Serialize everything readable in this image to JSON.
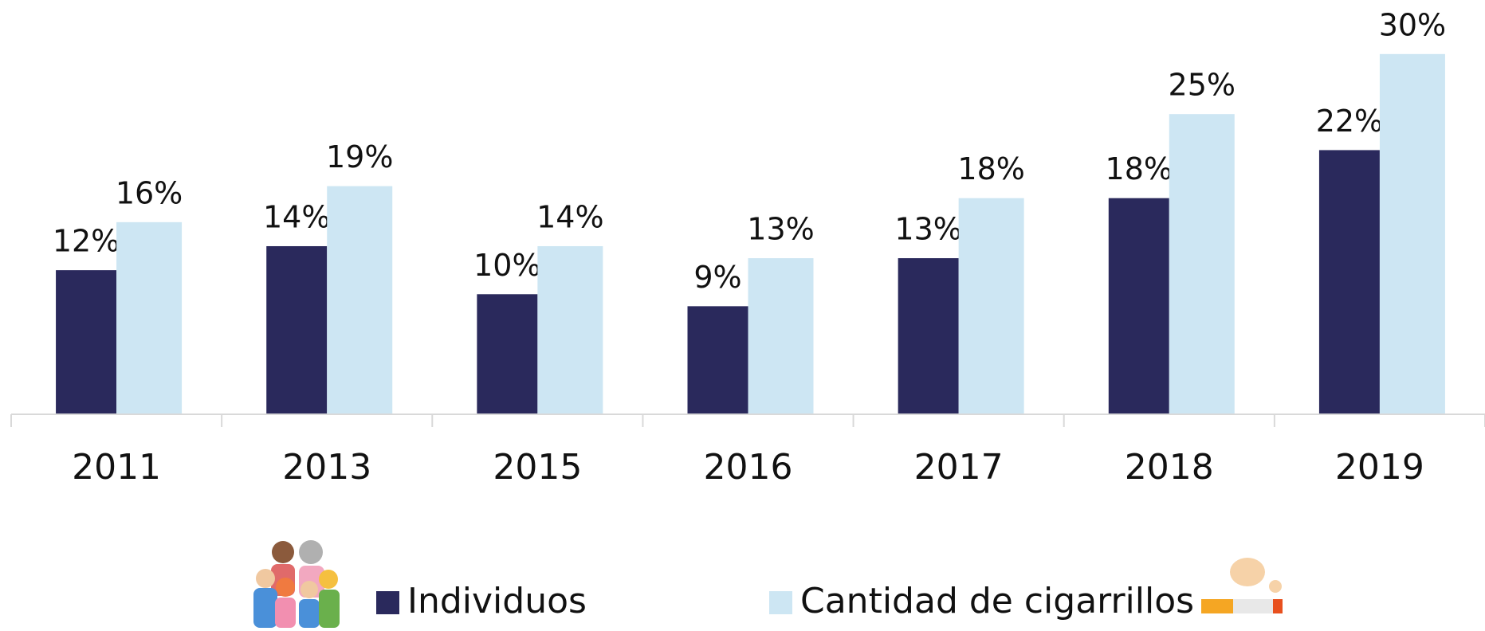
{
  "chart_data": {
    "type": "bar",
    "categories": [
      "2011",
      "2013",
      "2015",
      "2016",
      "2017",
      "2018",
      "2019"
    ],
    "series": [
      {
        "name": "Individuos",
        "color": "#2a295c",
        "values": [
          12,
          14,
          10,
          9,
          13,
          18,
          22
        ],
        "value_labels": [
          "12%",
          "14%",
          "10%",
          "9%",
          "13%",
          "18%",
          "22%"
        ]
      },
      {
        "name": "Cantidad de cigarrillos",
        "color": "#cde6f3",
        "values": [
          16,
          19,
          14,
          13,
          18,
          25,
          30
        ],
        "value_labels": [
          "16%",
          "19%",
          "14%",
          "13%",
          "18%",
          "25%",
          "30%"
        ]
      }
    ],
    "ylim": [
      0,
      34.5
    ]
  }
}
